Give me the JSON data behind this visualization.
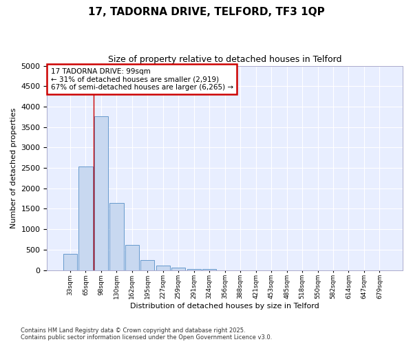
{
  "title_line1": "17, TADORNA DRIVE, TELFORD, TF3 1QP",
  "title_line2": "Size of property relative to detached houses in Telford",
  "xlabel": "Distribution of detached houses by size in Telford",
  "ylabel": "Number of detached properties",
  "categories": [
    "33sqm",
    "65sqm",
    "98sqm",
    "130sqm",
    "162sqm",
    "195sqm",
    "227sqm",
    "259sqm",
    "291sqm",
    "324sqm",
    "356sqm",
    "388sqm",
    "421sqm",
    "453sqm",
    "485sqm",
    "518sqm",
    "550sqm",
    "582sqm",
    "614sqm",
    "647sqm",
    "679sqm"
  ],
  "values": [
    390,
    2530,
    3770,
    1650,
    620,
    240,
    110,
    55,
    30,
    25,
    0,
    0,
    0,
    0,
    0,
    0,
    0,
    0,
    0,
    0,
    0
  ],
  "bar_color": "#c8d8f0",
  "bar_edge_color": "#6699cc",
  "vline_x": 1.5,
  "vline_color": "#cc0000",
  "annotation_title": "17 TADORNA DRIVE: 99sqm",
  "annotation_line1": "← 31% of detached houses are smaller (2,919)",
  "annotation_line2": "67% of semi-detached houses are larger (6,265) →",
  "annotation_box_color": "#cc0000",
  "ylim": [
    0,
    5000
  ],
  "yticks": [
    0,
    500,
    1000,
    1500,
    2000,
    2500,
    3000,
    3500,
    4000,
    4500,
    5000
  ],
  "background_color": "#ffffff",
  "plot_bg_color": "#e8eeff",
  "grid_color": "#ffffff",
  "footer_line1": "Contains HM Land Registry data © Crown copyright and database right 2025.",
  "footer_line2": "Contains public sector information licensed under the Open Government Licence v3.0."
}
